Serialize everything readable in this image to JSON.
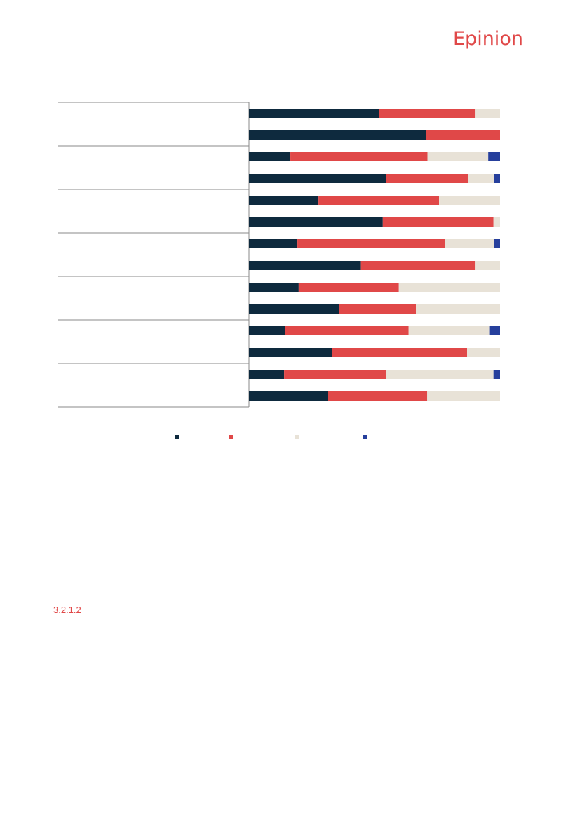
{
  "brand": {
    "logo_text": "Epinion",
    "accent_color": "#e04848"
  },
  "section": {
    "number": "3.2.1.2"
  },
  "chart_data": {
    "type": "bar",
    "orientation": "horizontal",
    "stacked": true,
    "groups": 7,
    "bars_per_group": 2,
    "xlim": [
      0,
      1
    ],
    "categories": [
      "",
      "",
      "",
      "",
      "",
      "",
      "",
      "",
      "",
      "",
      "",
      "",
      "",
      ""
    ],
    "series": [
      {
        "color": "#0e2a3e",
        "values": [
          0.517,
          0.706,
          0.165,
          0.547,
          0.277,
          0.533,
          0.193,
          0.446,
          0.198,
          0.358,
          0.145,
          0.33,
          0.14,
          0.313
        ]
      },
      {
        "color": "#e04848",
        "values": [
          0.383,
          0.294,
          0.546,
          0.327,
          0.48,
          0.441,
          0.587,
          0.454,
          0.399,
          0.307,
          0.491,
          0.539,
          0.406,
          0.397
        ]
      },
      {
        "color": "#e8e2d7",
        "values": [
          0.1,
          0.0,
          0.242,
          0.101,
          0.243,
          0.026,
          0.196,
          0.1,
          0.403,
          0.335,
          0.321,
          0.131,
          0.428,
          0.29
        ]
      },
      {
        "color": "#263f9c",
        "values": [
          0.0,
          0.0,
          0.047,
          0.025,
          0.0,
          0.0,
          0.024,
          0.0,
          0.0,
          0.0,
          0.043,
          0.0,
          0.026,
          0.0
        ]
      }
    ],
    "legend": {
      "position": "bottom"
    },
    "grid": false
  }
}
